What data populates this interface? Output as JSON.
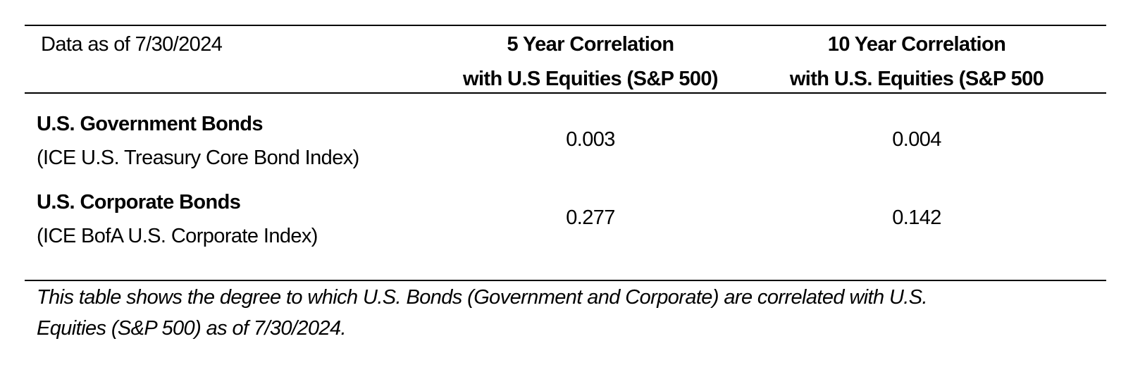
{
  "header": {
    "as_of": "Data as of 7/30/2024",
    "col1_line1": "5 Year Correlation",
    "col1_line2": "with U.S Equities (S&P 500)",
    "col2_line1": "10 Year Correlation",
    "col2_line2": "with U.S. Equities (S&P 500"
  },
  "rows": [
    {
      "name": "U.S. Government Bonds",
      "index": "(ICE U.S. Treasury Core Bond Index)",
      "corr_5y": "0.003",
      "corr_10y": "0.004"
    },
    {
      "name": "U.S. Corporate Bonds",
      "index": "(ICE BofA U.S. Corporate Index)",
      "corr_5y": "0.277",
      "corr_10y": "0.142"
    }
  ],
  "footnote": {
    "line1": "This table shows the degree to which U.S. Bonds (Government and Corporate) are correlated with U.S.",
    "line2": "Equities (S&P 500) as of 7/30/2024."
  }
}
